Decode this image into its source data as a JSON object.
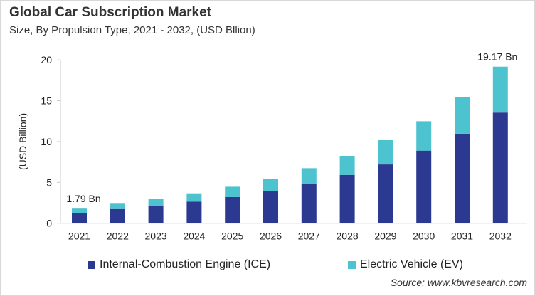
{
  "chart_data": {
    "type": "bar",
    "stacked": true,
    "title": "Global Car Subscription Market",
    "subtitle": "Size, By Propulsion Type, 2021 - 2032, (USD Bllion)",
    "xlabel": "",
    "ylabel": "(USD Billion)",
    "ylim": [
      0,
      20
    ],
    "yticks": [
      0,
      5,
      10,
      15,
      20
    ],
    "grid": false,
    "legend": "bottom",
    "categories": [
      "2021",
      "2022",
      "2023",
      "2024",
      "2025",
      "2026",
      "2027",
      "2028",
      "2029",
      "2030",
      "2031",
      "2032"
    ],
    "series": [
      {
        "name": "Internal-Combustion Engine (ICE)",
        "color": "#2b3990",
        "values": [
          1.25,
          1.74,
          2.15,
          2.65,
          3.2,
          3.92,
          4.8,
          5.92,
          7.2,
          8.89,
          10.97,
          13.55
        ]
      },
      {
        "name": "Electric Vehicle (EV)",
        "color": "#4dc3d0",
        "values": [
          0.54,
          0.65,
          0.87,
          1.01,
          1.27,
          1.51,
          1.94,
          2.33,
          2.97,
          3.6,
          4.48,
          5.62
        ]
      }
    ],
    "annotations": [
      {
        "category": "2021",
        "text": "1.79 Bn"
      },
      {
        "category": "2032",
        "text": "19.17 Bn"
      }
    ]
  },
  "source": "Source: www.kbvresearch.com"
}
